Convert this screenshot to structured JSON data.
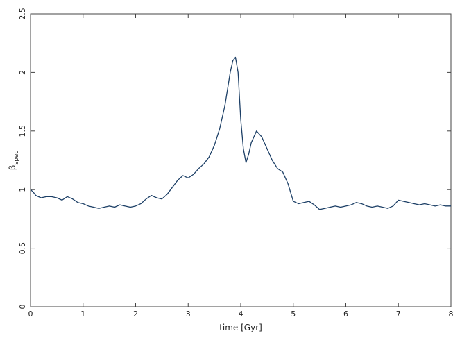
{
  "chart_data": {
    "type": "line",
    "xlabel": "time [Gyr]",
    "ylabel_main": "β",
    "ylabel_sub": "spec",
    "xlim": [
      0,
      8
    ],
    "ylim": [
      0,
      2.5
    ],
    "x_ticks": [
      0,
      1,
      2,
      3,
      4,
      5,
      6,
      7,
      8
    ],
    "x_tick_labels": [
      "0",
      "1",
      "2",
      "3",
      "4",
      "5",
      "6",
      "7",
      "8"
    ],
    "y_ticks": [
      0,
      0.5,
      1,
      1.5,
      2,
      2.5
    ],
    "y_tick_labels": [
      "0",
      "0.5",
      "1",
      "1.5",
      "2",
      "2.5"
    ],
    "grid": false,
    "series": [
      {
        "color": "#1c3f66",
        "x": [
          0.0,
          0.05,
          0.1,
          0.2,
          0.3,
          0.4,
          0.5,
          0.6,
          0.7,
          0.8,
          0.9,
          1.0,
          1.1,
          1.2,
          1.3,
          1.4,
          1.5,
          1.6,
          1.7,
          1.8,
          1.9,
          2.0,
          2.1,
          2.2,
          2.3,
          2.4,
          2.5,
          2.6,
          2.7,
          2.8,
          2.9,
          3.0,
          3.1,
          3.2,
          3.3,
          3.4,
          3.5,
          3.6,
          3.7,
          3.8,
          3.85,
          3.9,
          3.95,
          4.0,
          4.05,
          4.1,
          4.15,
          4.2,
          4.3,
          4.4,
          4.5,
          4.6,
          4.7,
          4.8,
          4.9,
          5.0,
          5.1,
          5.2,
          5.3,
          5.4,
          5.5,
          5.6,
          5.7,
          5.8,
          5.9,
          6.0,
          6.1,
          6.2,
          6.3,
          6.4,
          6.5,
          6.6,
          6.7,
          6.8,
          6.9,
          7.0,
          7.1,
          7.2,
          7.3,
          7.4,
          7.5,
          7.6,
          7.7,
          7.8,
          7.9,
          8.0
        ],
        "y": [
          1.0,
          0.98,
          0.95,
          0.93,
          0.94,
          0.94,
          0.93,
          0.91,
          0.94,
          0.92,
          0.89,
          0.88,
          0.86,
          0.85,
          0.84,
          0.85,
          0.86,
          0.85,
          0.87,
          0.86,
          0.85,
          0.86,
          0.88,
          0.92,
          0.95,
          0.93,
          0.92,
          0.96,
          1.02,
          1.08,
          1.12,
          1.1,
          1.13,
          1.18,
          1.22,
          1.28,
          1.38,
          1.52,
          1.72,
          2.0,
          2.1,
          2.13,
          2.0,
          1.6,
          1.35,
          1.23,
          1.3,
          1.4,
          1.5,
          1.45,
          1.35,
          1.25,
          1.18,
          1.15,
          1.05,
          0.9,
          0.88,
          0.89,
          0.9,
          0.87,
          0.83,
          0.84,
          0.85,
          0.86,
          0.85,
          0.86,
          0.87,
          0.89,
          0.88,
          0.86,
          0.85,
          0.86,
          0.85,
          0.84,
          0.86,
          0.91,
          0.9,
          0.89,
          0.88,
          0.87,
          0.88,
          0.87,
          0.86,
          0.87,
          0.86,
          0.86
        ]
      }
    ]
  }
}
